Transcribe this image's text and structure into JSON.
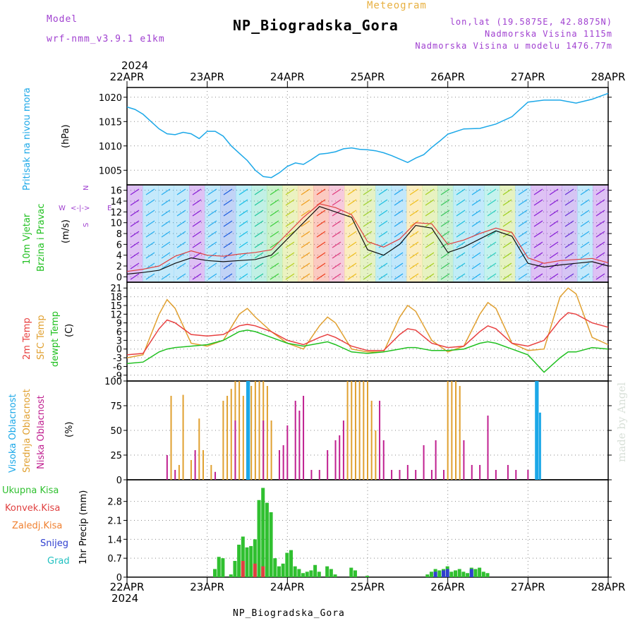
{
  "header": {
    "model_label": "Model",
    "model_name": "wrf-nmm_v3.9.1 e1km",
    "meteogram_label": "Meteogram",
    "location_title": "NP_Biogradska_Gora",
    "lonlat": "lon,lat (19.5875E, 42.8875N)",
    "altitude": "Nadmorska Visina 1115m",
    "model_altitude": "Nadmorska Visina u modelu 1476.77m",
    "year_top": "2024",
    "year_bottom": "2024",
    "footer_location": "NP_Biogradska_Gora",
    "signature": "made by Angel"
  },
  "colors": {
    "pressure": "#1ca8e8",
    "wind_speed": "#101010",
    "wind_gust": "#e04040",
    "temp_2m": "#e84040",
    "temp_sfc": "#e0a030",
    "temp_dew": "#20c020",
    "cloud_high": "#1ca8e8",
    "cloud_mid": "#e0a030",
    "cloud_low": "#c02090",
    "precip_total": "#30c030",
    "precip_conv": "#e04040",
    "precip_frz": "#f08030",
    "precip_snow": "#3040d0",
    "precip_hail": "#20c0c0"
  },
  "chart_data": [
    {
      "type": "line",
      "panel": "pressure",
      "ylabel_name": "Pritisak na nivou mora",
      "ylabel_unit": "(hPa)",
      "ylim": [
        1002,
        1022
      ],
      "yticks": [
        1005,
        1010,
        1015,
        1020
      ],
      "x_days": [
        "22APR",
        "23APR",
        "24APR",
        "25APR",
        "26APR",
        "27APR",
        "28APR"
      ],
      "x": [
        0,
        0.1,
        0.2,
        0.3,
        0.4,
        0.5,
        0.6,
        0.7,
        0.8,
        0.9,
        1.0,
        1.1,
        1.2,
        1.3,
        1.4,
        1.5,
        1.6,
        1.7,
        1.8,
        1.9,
        2.0,
        2.1,
        2.2,
        2.3,
        2.4,
        2.5,
        2.6,
        2.7,
        2.8,
        2.9,
        3.0,
        3.1,
        3.2,
        3.3,
        3.4,
        3.5,
        3.6,
        3.7,
        3.8,
        3.9,
        4.0,
        4.2,
        4.4,
        4.6,
        4.8,
        5.0,
        5.2,
        5.4,
        5.6,
        5.8,
        6.0
      ],
      "series": [
        {
          "name": "",
          "values": [
            1018,
            1017.5,
            1016.5,
            1015,
            1013.5,
            1012.5,
            1012.3,
            1012.8,
            1012.5,
            1011.5,
            1013,
            1013,
            1012,
            1010,
            1008.5,
            1007,
            1005,
            1003.7,
            1003.5,
            1004.5,
            1005.8,
            1006.5,
            1006.2,
            1007.2,
            1008.3,
            1008.5,
            1008.8,
            1009.4,
            1009.6,
            1009.3,
            1009.2,
            1009.0,
            1008.6,
            1008.0,
            1007.3,
            1006.6,
            1007.5,
            1008.2,
            1009.7,
            1011.0,
            1012.4,
            1013.5,
            1013.6,
            1014.5,
            1016,
            1019,
            1019.4,
            1019.4,
            1018.8,
            1019.6,
            1020.8
          ]
        }
      ]
    },
    {
      "type": "line",
      "panel": "wind",
      "ylabel_name_1": "10m Vjetar",
      "ylabel_name_2": "Brzina i Pravac",
      "ylabel_unit": "(m/s)",
      "compass": [
        "N",
        "W",
        "E",
        "S"
      ],
      "ylim": [
        -1,
        17
      ],
      "yticks": [
        0,
        2,
        4,
        6,
        8,
        10,
        12,
        14,
        16
      ],
      "x": [
        0,
        0.2,
        0.4,
        0.6,
        0.8,
        1.0,
        1.2,
        1.4,
        1.6,
        1.8,
        2.0,
        2.2,
        2.4,
        2.6,
        2.8,
        3.0,
        3.2,
        3.4,
        3.6,
        3.8,
        4.0,
        4.2,
        4.4,
        4.6,
        4.8,
        5.0,
        5.2,
        5.4,
        5.6,
        5.8,
        6.0
      ],
      "series": [
        {
          "name": "speed",
          "values": [
            0.5,
            0.8,
            1.2,
            2.5,
            3.5,
            3.0,
            2.8,
            3.0,
            3.2,
            4.0,
            7.0,
            10.0,
            13.0,
            12.0,
            11.0,
            5.0,
            4.0,
            6.0,
            9.5,
            9.0,
            4.5,
            5.5,
            7.0,
            8.5,
            7.5,
            2.5,
            1.8,
            2.2,
            2.5,
            2.8,
            2.0
          ]
        },
        {
          "name": "gust",
          "values": [
            1.0,
            1.4,
            2.0,
            3.8,
            4.8,
            4.0,
            3.8,
            4.2,
            4.5,
            5.0,
            8.0,
            11.0,
            13.5,
            12.8,
            11.5,
            6.5,
            5.5,
            7.0,
            10.0,
            9.8,
            6.0,
            6.8,
            8.0,
            9.0,
            8.2,
            3.5,
            2.5,
            3.0,
            3.2,
            3.4,
            2.6
          ]
        }
      ]
    },
    {
      "type": "line",
      "panel": "temperature",
      "ylabel_2m": "2m Temp",
      "ylabel_sfc": "SFC Temp",
      "ylabel_dew": "dewpt Temp",
      "ylabel_unit": "(C)",
      "ylim": [
        -11,
        23
      ],
      "yticks": [
        -9,
        -6,
        -3,
        0,
        3,
        6,
        9,
        12,
        15,
        18,
        21
      ],
      "x": [
        0,
        0.2,
        0.4,
        0.5,
        0.6,
        0.8,
        1.0,
        1.2,
        1.4,
        1.5,
        1.6,
        1.8,
        2.0,
        2.2,
        2.4,
        2.5,
        2.6,
        2.8,
        3.0,
        3.2,
        3.4,
        3.5,
        3.6,
        3.8,
        4.0,
        4.2,
        4.4,
        4.5,
        4.6,
        4.8,
        5.0,
        5.2,
        5.4,
        5.5,
        5.6,
        5.8,
        6.0
      ],
      "series": [
        {
          "name": "2m",
          "values": [
            -2,
            -1.5,
            7,
            10,
            9,
            5,
            4.5,
            5,
            8,
            8.5,
            8,
            6,
            3,
            1.5,
            4,
            5,
            4,
            1,
            -0.5,
            -0.5,
            5,
            7,
            6.5,
            2,
            0.5,
            1,
            6,
            8,
            7,
            2,
            1,
            3,
            10,
            12.5,
            12,
            9,
            7.5
          ]
        },
        {
          "name": "sfc",
          "values": [
            -3,
            -2,
            12,
            17,
            14,
            2,
            1,
            3,
            12,
            14,
            11,
            6,
            2,
            0,
            8,
            11,
            9,
            0,
            -1,
            -1,
            11,
            15,
            13,
            3,
            -1,
            1,
            12,
            16,
            14,
            2,
            -0.5,
            0,
            18,
            21,
            19,
            4,
            1.5
          ]
        },
        {
          "name": "dew",
          "values": [
            -5,
            -4.5,
            -1,
            0,
            0.5,
            1,
            1.5,
            3,
            6,
            6.5,
            6,
            4,
            2,
            1,
            2,
            2.5,
            1.5,
            -1,
            -1.5,
            -1,
            0,
            0.5,
            0.5,
            -0.5,
            -0.5,
            0,
            2,
            2.5,
            2,
            0,
            -2,
            -8,
            -3,
            -1,
            -1,
            0.5,
            0
          ]
        }
      ]
    },
    {
      "type": "bar",
      "panel": "cloud",
      "ylabel_high": "Visoka Oblacnost",
      "ylabel_mid": "Srednja Oblacnost",
      "ylabel_low": "Niska Oblacnost",
      "ylabel_unit": "(%)",
      "ylim": [
        0,
        100
      ],
      "yticks": [
        0,
        25,
        50,
        75,
        100
      ],
      "series": [
        {
          "name": "mid",
          "x": [
            0.55,
            0.65,
            0.7,
            0.8,
            0.9,
            0.95,
            1.05,
            1.2,
            1.25,
            1.3,
            1.35,
            1.4,
            1.45,
            1.5,
            1.55,
            1.6,
            1.65,
            1.7,
            1.75,
            1.8,
            2.75,
            2.8,
            2.85,
            2.9,
            2.95,
            3.0,
            3.05,
            3.1,
            4.0,
            4.05,
            4.1,
            4.15
          ],
          "values": [
            85,
            15,
            86,
            20,
            62,
            30,
            15,
            80,
            85,
            92,
            100,
            100,
            85,
            100,
            95,
            100,
            100,
            100,
            95,
            60,
            100,
            100,
            100,
            100,
            100,
            100,
            80,
            50,
            100,
            100,
            100,
            95
          ]
        },
        {
          "name": "low",
          "x": [
            0.5,
            0.6,
            0.85,
            1.1,
            1.35,
            1.5,
            1.7,
            1.9,
            1.95,
            2.0,
            2.1,
            2.15,
            2.2,
            2.3,
            2.4,
            2.5,
            2.6,
            2.65,
            2.7,
            3.15,
            3.2,
            3.3,
            3.4,
            3.5,
            3.6,
            3.7,
            3.8,
            3.85,
            3.95,
            4.2,
            4.3,
            4.4,
            4.5,
            4.6,
            4.75,
            4.85,
            5.0
          ],
          "values": [
            25,
            10,
            30,
            8,
            60,
            100,
            60,
            30,
            35,
            55,
            80,
            70,
            85,
            10,
            10,
            30,
            40,
            45,
            60,
            80,
            40,
            10,
            10,
            15,
            10,
            35,
            10,
            40,
            10,
            40,
            15,
            15,
            65,
            10,
            15,
            10,
            10
          ]
        },
        {
          "name": "high",
          "x": [
            1.5,
            1.52,
            5.1,
            5.12,
            5.15
          ],
          "values": [
            100,
            100,
            100,
            100,
            68
          ]
        }
      ]
    },
    {
      "type": "bar",
      "panel": "precip",
      "ylabel_unit": "1hr Precip (mm)",
      "legend": [
        "Ukupna Kisa",
        "Konvek.Kisa",
        "Zaledj.Kisa",
        "Snijeg",
        "Grad"
      ],
      "ylim": [
        0,
        3.6
      ],
      "yticks": [
        0,
        0.7,
        1.4,
        2.1,
        2.8
      ],
      "series": [
        {
          "name": "total",
          "x": [
            1.1,
            1.15,
            1.2,
            1.3,
            1.35,
            1.4,
            1.45,
            1.5,
            1.55,
            1.6,
            1.65,
            1.7,
            1.75,
            1.8,
            1.85,
            1.9,
            1.95,
            2.0,
            2.05,
            2.1,
            2.15,
            2.2,
            2.25,
            2.3,
            2.35,
            2.4,
            2.5,
            2.55,
            2.6,
            2.8,
            2.85,
            3.0,
            3.75,
            3.8,
            3.85,
            3.9,
            3.95,
            4.0,
            4.05,
            4.1,
            4.15,
            4.2,
            4.25,
            4.3,
            4.35,
            4.4,
            4.45,
            4.5
          ],
          "values": [
            0.3,
            0.75,
            0.7,
            0.1,
            0.6,
            1.2,
            1.5,
            1.1,
            1.15,
            1.4,
            2.85,
            3.3,
            2.75,
            2.4,
            0.7,
            0.4,
            0.5,
            0.9,
            1.0,
            0.4,
            0.3,
            0.15,
            0.2,
            0.25,
            0.45,
            0.2,
            0.4,
            0.3,
            0.1,
            0.35,
            0.25,
            0.05,
            0.1,
            0.2,
            0.3,
            0.25,
            0.3,
            0.4,
            0.2,
            0.25,
            0.3,
            0.2,
            0.15,
            0.35,
            0.3,
            0.35,
            0.2,
            0.15
          ]
        },
        {
          "name": "conv",
          "x": [
            1.45,
            1.6,
            1.7
          ],
          "values": [
            0.6,
            0.5,
            0.4
          ]
        },
        {
          "name": "snow",
          "x": [
            3.85,
            3.95,
            4.0,
            4.3
          ],
          "values": [
            0.2,
            0.25,
            0.3,
            0.3
          ]
        }
      ]
    }
  ]
}
